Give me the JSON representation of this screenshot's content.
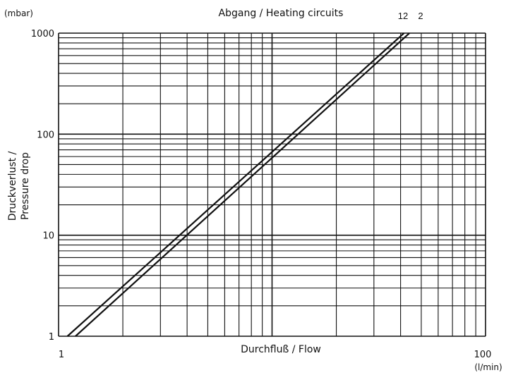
{
  "chart_data": {
    "type": "line",
    "title": "Abgang / Heating circuits",
    "xlabel": "Durchfluß / Flow",
    "ylabel_line1": "Druckverlust /",
    "ylabel_line2": "Pressure drop",
    "x_unit": "(l/min)",
    "y_unit": "(mbar)",
    "x_scale": "log",
    "y_scale": "log",
    "xlim": [
      1,
      100
    ],
    "ylim": [
      1,
      1000
    ],
    "x_ticks": [
      {
        "value": 1,
        "label": "1"
      },
      {
        "value": 100,
        "label": "100"
      }
    ],
    "y_ticks": [
      {
        "value": 1,
        "label": "1"
      },
      {
        "value": 10,
        "label": "10"
      },
      {
        "value": 100,
        "label": "100"
      },
      {
        "value": 1000,
        "label": "1000"
      }
    ],
    "grid": true,
    "series_labels_text": [
      "12",
      "2"
    ],
    "series": [
      {
        "name": "12",
        "x": [
          1.2,
          44
        ],
        "y": [
          1,
          1000
        ]
      },
      {
        "name": "2",
        "x": [
          1.1,
          41.5
        ],
        "y": [
          1,
          1000
        ]
      }
    ]
  },
  "colors": {
    "line": "#111111",
    "grid": "#111111",
    "background": "#ffffff"
  }
}
